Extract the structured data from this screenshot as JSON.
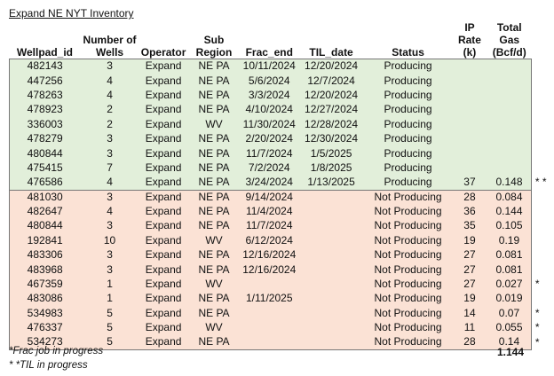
{
  "title": "Expand NE NYT Inventory",
  "headers": {
    "wellpad": "Wellpad_id",
    "num_wells": "Number of\nWells",
    "operator": "Operator",
    "subregion": "Sub Region",
    "frac_end": "Frac_end",
    "til_date": "TIL_date",
    "status": "Status",
    "ip_rate": "IP Rate\n(k)",
    "total_gas": "Total Gas\n(Bcf/d)"
  },
  "rows": [
    {
      "wellpad": "482143",
      "wells": "3",
      "operator": "Expand",
      "subregion": "NE PA",
      "frac_end": "10/11/2024",
      "til": "12/20/2024",
      "status": "Producing",
      "ip": "",
      "gas": "",
      "mark": "",
      "group": "prod"
    },
    {
      "wellpad": "447256",
      "wells": "4",
      "operator": "Expand",
      "subregion": "NE PA",
      "frac_end": "5/6/2024",
      "til": "12/7/2024",
      "status": "Producing",
      "ip": "",
      "gas": "",
      "mark": "",
      "group": "prod"
    },
    {
      "wellpad": "478263",
      "wells": "4",
      "operator": "Expand",
      "subregion": "NE PA",
      "frac_end": "3/3/2024",
      "til": "12/20/2024",
      "status": "Producing",
      "ip": "",
      "gas": "",
      "mark": "",
      "group": "prod"
    },
    {
      "wellpad": "478923",
      "wells": "2",
      "operator": "Expand",
      "subregion": "NE PA",
      "frac_end": "4/10/2024",
      "til": "12/27/2024",
      "status": "Producing",
      "ip": "",
      "gas": "",
      "mark": "",
      "group": "prod"
    },
    {
      "wellpad": "336003",
      "wells": "2",
      "operator": "Expand",
      "subregion": "WV",
      "frac_end": "11/30/2024",
      "til": "12/28/2024",
      "status": "Producing",
      "ip": "",
      "gas": "",
      "mark": "",
      "group": "prod"
    },
    {
      "wellpad": "478279",
      "wells": "3",
      "operator": "Expand",
      "subregion": "NE PA",
      "frac_end": "2/20/2024",
      "til": "12/30/2024",
      "status": "Producing",
      "ip": "",
      "gas": "",
      "mark": "",
      "group": "prod"
    },
    {
      "wellpad": "480844",
      "wells": "3",
      "operator": "Expand",
      "subregion": "NE PA",
      "frac_end": "11/7/2024",
      "til": "1/5/2025",
      "status": "Producing",
      "ip": "",
      "gas": "",
      "mark": "",
      "group": "prod"
    },
    {
      "wellpad": "475415",
      "wells": "7",
      "operator": "Expand",
      "subregion": "NE PA",
      "frac_end": "7/2/2024",
      "til": "1/8/2025",
      "status": "Producing",
      "ip": "",
      "gas": "",
      "mark": "",
      "group": "prod"
    },
    {
      "wellpad": "476586",
      "wells": "4",
      "operator": "Expand",
      "subregion": "NE PA",
      "frac_end": "3/24/2024",
      "til": "1/13/2025",
      "status": "Producing",
      "ip": "37",
      "gas": "0.148",
      "mark": "* *",
      "group": "prod"
    },
    {
      "wellpad": "481030",
      "wells": "3",
      "operator": "Expand",
      "subregion": "NE PA",
      "frac_end": "9/14/2024",
      "til": "",
      "status": "Not Producing",
      "ip": "28",
      "gas": "0.084",
      "mark": "",
      "group": "notprod"
    },
    {
      "wellpad": "482647",
      "wells": "4",
      "operator": "Expand",
      "subregion": "NE PA",
      "frac_end": "11/4/2024",
      "til": "",
      "status": "Not Producing",
      "ip": "36",
      "gas": "0.144",
      "mark": "",
      "group": "notprod"
    },
    {
      "wellpad": "480844",
      "wells": "3",
      "operator": "Expand",
      "subregion": "NE PA",
      "frac_end": "11/7/2024",
      "til": "",
      "status": "Not Producing",
      "ip": "35",
      "gas": "0.105",
      "mark": "",
      "group": "notprod"
    },
    {
      "wellpad": "192841",
      "wells": "10",
      "operator": "Expand",
      "subregion": "WV",
      "frac_end": "6/12/2024",
      "til": "",
      "status": "Not Producing",
      "ip": "19",
      "gas": "0.19",
      "mark": "",
      "group": "notprod"
    },
    {
      "wellpad": "483306",
      "wells": "3",
      "operator": "Expand",
      "subregion": "NE PA",
      "frac_end": "12/16/2024",
      "til": "",
      "status": "Not Producing",
      "ip": "27",
      "gas": "0.081",
      "mark": "",
      "group": "notprod"
    },
    {
      "wellpad": "483968",
      "wells": "3",
      "operator": "Expand",
      "subregion": "NE PA",
      "frac_end": "12/16/2024",
      "til": "",
      "status": "Not Producing",
      "ip": "27",
      "gas": "0.081",
      "mark": "",
      "group": "notprod"
    },
    {
      "wellpad": "467359",
      "wells": "1",
      "operator": "Expand",
      "subregion": "WV",
      "frac_end": "",
      "til": "",
      "status": "Not Producing",
      "ip": "27",
      "gas": "0.027",
      "mark": "*",
      "group": "notprod"
    },
    {
      "wellpad": "483086",
      "wells": "1",
      "operator": "Expand",
      "subregion": "NE PA",
      "frac_end": "1/11/2025",
      "til": "",
      "status": "Not Producing",
      "ip": "19",
      "gas": "0.019",
      "mark": "",
      "group": "notprod"
    },
    {
      "wellpad": "534983",
      "wells": "5",
      "operator": "Expand",
      "subregion": "NE PA",
      "frac_end": "",
      "til": "",
      "status": "Not Producing",
      "ip": "14",
      "gas": "0.07",
      "mark": "*",
      "group": "notprod"
    },
    {
      "wellpad": "476337",
      "wells": "5",
      "operator": "Expand",
      "subregion": "WV",
      "frac_end": "",
      "til": "",
      "status": "Not Producing",
      "ip": "11",
      "gas": "0.055",
      "mark": "*",
      "group": "notprod"
    },
    {
      "wellpad": "534273",
      "wells": "5",
      "operator": "Expand",
      "subregion": "NE PA",
      "frac_end": "",
      "til": "",
      "status": "Not Producing",
      "ip": "28",
      "gas": "0.14",
      "mark": "*",
      "group": "notprod"
    }
  ],
  "total": "1.144",
  "footnotes": {
    "frac": "*Frac job in progress",
    "til": "* *TIL in progress"
  },
  "colors": {
    "producing_bg": "#e2efda",
    "not_producing_bg": "#fbe2d5"
  }
}
